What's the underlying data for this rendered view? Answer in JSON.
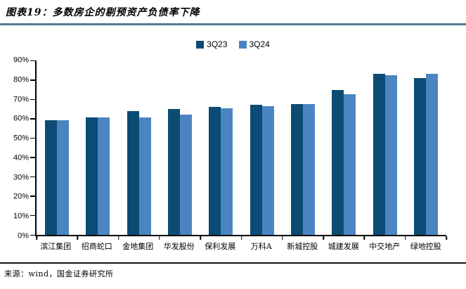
{
  "header": {
    "title": "图表19：多数房企的剔预资产负债率下降"
  },
  "legend": [
    {
      "label": "3Q23",
      "color": "#0c4b73"
    },
    {
      "label": "3Q24",
      "color": "#4c84c1"
    }
  ],
  "chart_data": {
    "type": "bar",
    "title": "多数房企的剔预资产负债率下降",
    "categories": [
      "滨江集团",
      "招商蛇口",
      "金地集团",
      "华发股份",
      "保利发展",
      "万科A",
      "新城控股",
      "城建发展",
      "中交地产",
      "绿地控股"
    ],
    "series": [
      {
        "name": "3Q23",
        "color": "#0c4b73",
        "values": [
          59.0,
          60.5,
          63.7,
          64.8,
          66.1,
          67.2,
          67.5,
          74.8,
          83.0,
          81.0
        ]
      },
      {
        "name": "3Q24",
        "color": "#4c84c1",
        "values": [
          59.0,
          60.5,
          60.7,
          62.2,
          65.4,
          66.3,
          67.4,
          72.5,
          82.3,
          83.0
        ]
      }
    ],
    "xlabel": "",
    "ylabel": "",
    "ylim": [
      0,
      90
    ],
    "ytick_step": 10,
    "ytick_suffix": "%",
    "grid": false,
    "legend_position": "top-center"
  },
  "footer": {
    "source": "来源：wind，国金证券研究所"
  },
  "colors": {
    "top_rule": "#527d98",
    "bottom_rule": "#111111",
    "axis": "#000000"
  }
}
